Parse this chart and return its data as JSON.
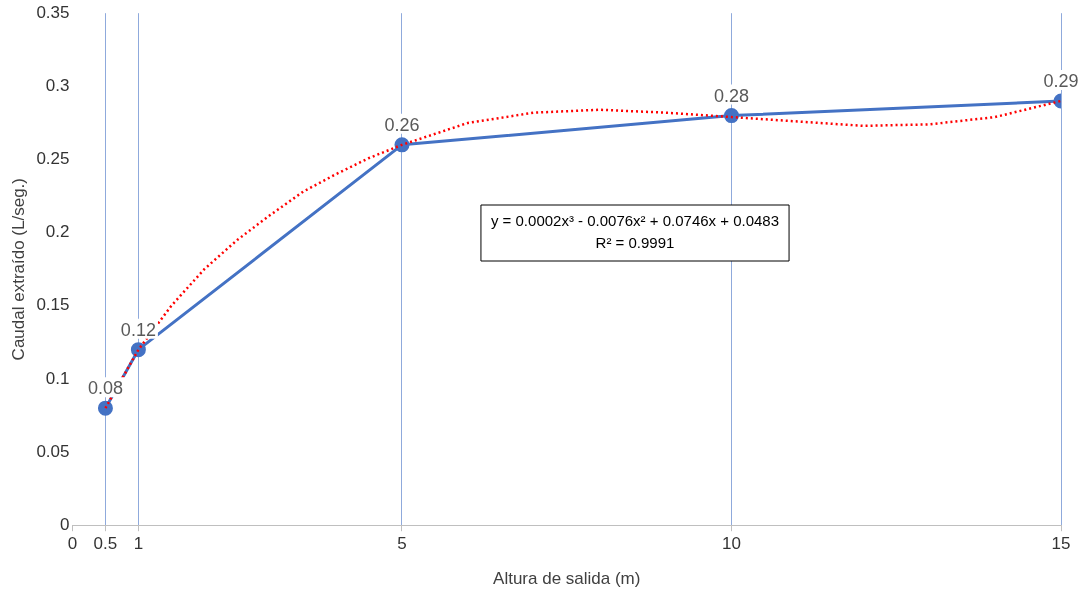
{
  "chart_data": {
    "type": "line",
    "xlabel": "Altura de salida (m)",
    "ylabel": "Caudal extraído (L/seg.)",
    "xlim": [
      0,
      15
    ],
    "xticks": [
      0,
      0.5,
      1,
      5,
      10,
      15
    ],
    "ylim": [
      0,
      0.35
    ],
    "yticks": [
      0,
      0.05,
      0.1,
      0.15,
      0.2,
      0.25,
      0.3,
      0.35
    ],
    "grid": "x",
    "legend": false,
    "series": [
      {
        "type": "line",
        "color": "#4472c4",
        "x": [
          0.5,
          1,
          5,
          10,
          15
        ],
        "values": [
          0.08,
          0.12,
          0.26,
          0.28,
          0.29
        ],
        "marker": "circle",
        "line_style": "solid",
        "data_labels": true
      },
      {
        "type": "line",
        "color": "#ff0000",
        "x": [
          0.5,
          1,
          1.5,
          2,
          2.5,
          3,
          3.5,
          4,
          4.5,
          5,
          6,
          7,
          8,
          9,
          10,
          11,
          12,
          13,
          14,
          15
        ],
        "values": [
          0.08,
          0.12,
          0.15,
          0.175,
          0.195,
          0.212,
          0.228,
          0.24,
          0.251,
          0.26,
          0.275,
          0.282,
          0.284,
          0.282,
          0.279,
          0.276,
          0.273,
          0.274,
          0.279,
          0.29
        ],
        "marker": "none",
        "line_style": "dotted"
      }
    ],
    "annotations": [
      "y = 0.0002x³ - 0.0076x² + 0.0746x + 0.0483",
      "R² = 0.9991"
    ]
  }
}
